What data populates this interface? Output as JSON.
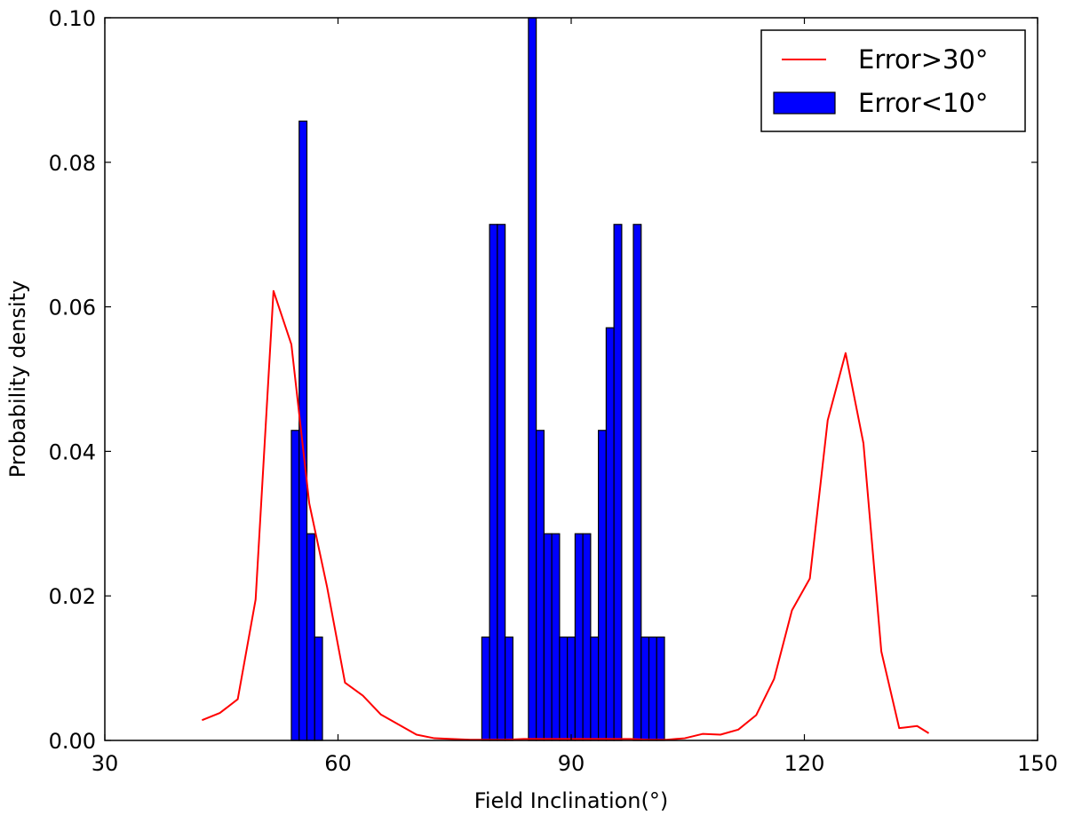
{
  "chart_data": {
    "type": "bar",
    "xlabel": "Field Inclination(°)",
    "ylabel": "Probability density",
    "xlim": [
      30,
      150
    ],
    "ylim": [
      0,
      0.1
    ],
    "x_ticks": [
      "30",
      "60",
      "90",
      "120",
      "150"
    ],
    "y_ticks": [
      "0.00",
      "0.02",
      "0.04",
      "0.06",
      "0.08",
      "0.10"
    ],
    "x_tick_values": [
      30,
      60,
      90,
      120,
      150
    ],
    "y_tick_values": [
      0,
      0.02,
      0.04,
      0.06,
      0.08,
      0.1
    ],
    "legend_position": "top-right",
    "grid": false,
    "series": [
      {
        "name": "Error>30°",
        "kind": "line",
        "color": "#ff0000",
        "x": [
          42.5,
          44.8,
          47.1,
          49.4,
          51.7,
          54.0,
          56.3,
          58.6,
          60.9,
          63.2,
          65.5,
          67.8,
          70.1,
          72.4,
          74.7,
          77.0,
          79.3,
          81.6,
          83.9,
          86.2,
          88.5,
          90.8,
          93.1,
          95.4,
          97.7,
          100.0,
          102.3,
          104.6,
          106.9,
          109.2,
          111.5,
          113.8,
          116.1,
          118.4,
          120.7,
          123.0,
          125.3,
          127.6,
          129.9,
          132.2,
          134.5,
          136.0
        ],
        "y": [
          0.0028,
          0.0038,
          0.0057,
          0.0195,
          0.0622,
          0.0548,
          0.0328,
          0.0212,
          0.008,
          0.0062,
          0.0036,
          0.0022,
          0.0008,
          0.0003,
          0.0002,
          0.0001,
          0.0001,
          0.0001,
          0.0002,
          0.0002,
          0.0002,
          0.0002,
          0.0002,
          0.0002,
          0.0002,
          0.0001,
          0.0001,
          0.0003,
          0.0009,
          0.0008,
          0.0015,
          0.0035,
          0.0085,
          0.018,
          0.0224,
          0.0443,
          0.0536,
          0.0411,
          0.0123,
          0.0017,
          0.002,
          0.001
        ]
      },
      {
        "name": "Error<10°",
        "kind": "bar",
        "color": "#0000ff",
        "bin_width": 1.0,
        "x": [
          54.5,
          55.5,
          56.5,
          57.5,
          79.0,
          80.0,
          81.0,
          82.0,
          85.0,
          86.0,
          87.0,
          88.0,
          89.0,
          90.0,
          91.0,
          92.0,
          93.0,
          94.0,
          95.0,
          96.0,
          98.5,
          99.5,
          100.5,
          101.5
        ],
        "values": [
          0.0429,
          0.0857,
          0.0286,
          0.0143,
          0.0143,
          0.0714,
          0.0714,
          0.0143,
          0.1,
          0.0429,
          0.0286,
          0.0286,
          0.0143,
          0.0143,
          0.0286,
          0.0286,
          0.0143,
          0.0429,
          0.0571,
          0.0714,
          0.0714,
          0.0143,
          0.0143,
          0.0143
        ]
      }
    ]
  }
}
